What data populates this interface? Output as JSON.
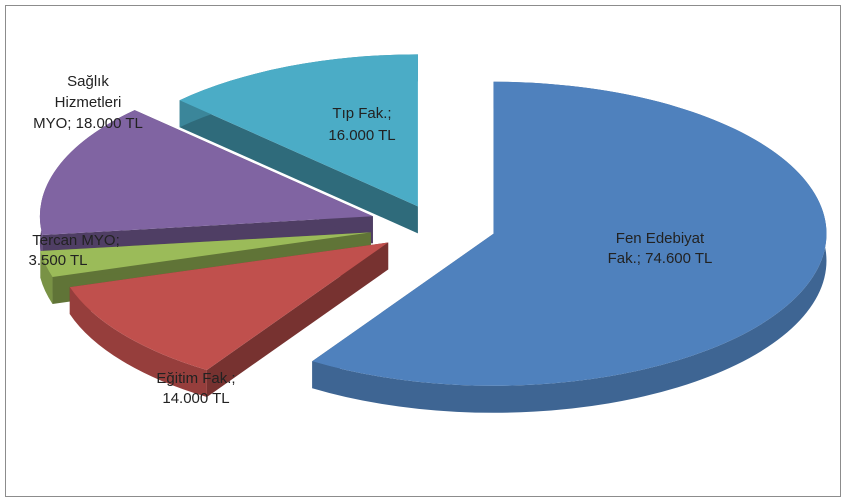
{
  "chart_data": {
    "type": "pie",
    "style": "3d-exploded",
    "title": "",
    "slices": [
      {
        "label_line1": "Fen Edebiyat",
        "label_line2": "Fak.; 74.600 TL",
        "label_line3": "",
        "category": "Fen Edebiyat Fak.",
        "value": 74600,
        "color": "#4F81BD"
      },
      {
        "label_line1": "Eğitim Fak.;",
        "label_line2": "14.000 TL",
        "label_line3": "",
        "category": "Eğitim Fak.",
        "value": 14000,
        "color": "#C0504D"
      },
      {
        "label_line1": "Tercan MYO;",
        "label_line2": "3.500 TL",
        "label_line3": "",
        "category": "Tercan MYO",
        "value": 3500,
        "color": "#9BBB59"
      },
      {
        "label_line1": "Sağlık",
        "label_line2": "Hizmetleri",
        "label_line3": "MYO; 18.000 TL",
        "category": "Sağlık Hizmetleri MYO",
        "value": 18000,
        "color": "#8064A2"
      },
      {
        "label_line1": "Tıp Fak.;",
        "label_line2": "16.000 TL",
        "label_line3": "",
        "category": "Tıp Fak.",
        "value": 16000,
        "color": "#4BACC6"
      }
    ],
    "unit": "TL"
  }
}
